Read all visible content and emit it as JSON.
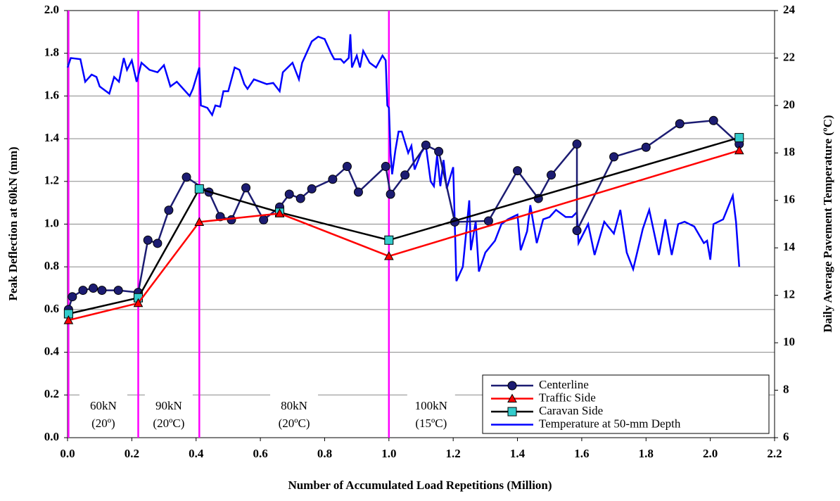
{
  "chart_data": {
    "type": "line",
    "x_label": "Number of Accumulated Load Repetitions (Million)",
    "y_label": "Peak Deflection at 60kN (mm)",
    "y2_label": "Daily Average Pavement Temperature (ºC)",
    "xlim": [
      0,
      2.2
    ],
    "xticks": [
      {
        "value": 0,
        "label": "0.0"
      },
      0.2,
      0.4,
      0.6,
      0.8,
      {
        "value": 1,
        "label": "1.0"
      },
      1.2,
      1.4,
      1.6,
      1.8,
      {
        "value": 2,
        "label": "2.0"
      },
      2.2
    ],
    "ylim": [
      0,
      2
    ],
    "yticks": [
      {
        "value": 0,
        "label": "0.0"
      },
      0.2,
      0.4,
      0.6,
      0.8,
      {
        "value": 1,
        "label": "1.0"
      },
      1.2,
      1.4,
      1.6,
      1.8,
      {
        "value": 2,
        "label": "2.0"
      }
    ],
    "y2lim": [
      6,
      24
    ],
    "y2ticks": [
      6,
      8,
      10,
      12,
      14,
      16,
      18,
      20,
      22,
      24
    ],
    "grid": true,
    "legend": "bottom-right",
    "phase_lines": {
      "color": "#ff00ff",
      "x": [
        0.003,
        0.22,
        0.41,
        1.0
      ]
    },
    "annotations": [
      [
        "60kN",
        "(20º)"
      ],
      [
        "90kN",
        "(20ºC)"
      ],
      [
        "80kN",
        "(20ºC)"
      ],
      [
        "100kN",
        "(15ºC)"
      ]
    ],
    "series": [
      {
        "name": "Centerline",
        "color": "#1c1c72",
        "marker": "circle",
        "x": [
          0.003,
          0.015,
          0.048,
          0.08,
          0.107,
          0.158,
          0.22,
          0.25,
          0.28,
          0.315,
          0.37,
          0.44,
          0.475,
          0.51,
          0.555,
          0.61,
          0.66,
          0.69,
          0.725,
          0.76,
          0.825,
          0.87,
          0.905,
          0.99,
          1.005,
          1.05,
          1.115,
          1.155,
          1.205,
          1.31,
          1.4,
          1.465,
          1.505,
          1.585,
          1.585,
          1.7,
          1.8,
          1.905,
          2.01,
          2.09
        ],
        "values": [
          0.6,
          0.66,
          0.69,
          0.7,
          0.69,
          0.69,
          0.68,
          0.925,
          0.91,
          1.065,
          1.22,
          1.15,
          1.035,
          1.02,
          1.17,
          1.02,
          1.08,
          1.14,
          1.12,
          1.165,
          1.21,
          1.27,
          1.15,
          1.27,
          1.14,
          1.23,
          1.37,
          1.34,
          1.01,
          1.015,
          1.25,
          1.12,
          1.23,
          1.375,
          0.97,
          1.315,
          1.36,
          1.47,
          1.485,
          1.375
        ]
      },
      {
        "name": "Traffic Side",
        "color": "#ff0000",
        "marker": "triangle",
        "x": [
          0.003,
          0.22,
          0.41,
          0.66,
          1.0,
          2.09
        ],
        "values": [
          0.55,
          0.63,
          1.01,
          1.05,
          0.85,
          1.345
        ]
      },
      {
        "name": "Caravan Side",
        "color": "#000000",
        "marker": "square",
        "marker_color": "#33cccc",
        "x": [
          0.003,
          0.22,
          0.41,
          0.66,
          1.0,
          2.09
        ],
        "values": [
          0.58,
          0.655,
          1.165,
          1.055,
          0.925,
          1.405
        ]
      },
      {
        "name": "Temperature at 50-mm Depth",
        "color": "#0000ff",
        "axis": "y2",
        "x": [
          0.0,
          0.01,
          0.04,
          0.055,
          0.075,
          0.09,
          0.1,
          0.13,
          0.145,
          0.16,
          0.175,
          0.185,
          0.2,
          0.215,
          0.23,
          0.255,
          0.28,
          0.3,
          0.32,
          0.34,
          0.38,
          0.39,
          0.41,
          0.415,
          0.435,
          0.45,
          0.46,
          0.475,
          0.485,
          0.5,
          0.52,
          0.535,
          0.55,
          0.56,
          0.58,
          0.62,
          0.64,
          0.66,
          0.67,
          0.7,
          0.72,
          0.73,
          0.76,
          0.78,
          0.8,
          0.82,
          0.83,
          0.85,
          0.86,
          0.875,
          0.88,
          0.885,
          0.9,
          0.91,
          0.92,
          0.94,
          0.96,
          0.98,
          0.99,
          0.995,
          1.0,
          1.005,
          1.01,
          1.02,
          1.03,
          1.04,
          1.06,
          1.07,
          1.08,
          1.1,
          1.115,
          1.13,
          1.14,
          1.15,
          1.16,
          1.17,
          1.18,
          1.2,
          1.21,
          1.23,
          1.25,
          1.255,
          1.27,
          1.28,
          1.3,
          1.33,
          1.35,
          1.37,
          1.4,
          1.41,
          1.43,
          1.44,
          1.46,
          1.48,
          1.5,
          1.52,
          1.55,
          1.57,
          1.585,
          1.59,
          1.62,
          1.64,
          1.67,
          1.7,
          1.72,
          1.74,
          1.76,
          1.79,
          1.81,
          1.84,
          1.86,
          1.88,
          1.9,
          1.92,
          1.95,
          1.98,
          1.99,
          2.0,
          2.01,
          2.04,
          2.07,
          2.08,
          2.09
        ],
        "values": [
          21.6,
          22.0,
          21.95,
          21.0,
          21.3,
          21.2,
          20.8,
          20.5,
          21.2,
          21.0,
          22.0,
          21.5,
          21.9,
          21.0,
          21.8,
          21.5,
          21.4,
          21.7,
          20.8,
          21.0,
          20.4,
          20.7,
          21.6,
          20.0,
          19.9,
          19.6,
          20.0,
          19.95,
          20.6,
          20.6,
          21.6,
          21.5,
          20.9,
          20.7,
          21.1,
          20.9,
          20.95,
          20.6,
          21.4,
          21.8,
          21.1,
          21.8,
          22.7,
          22.9,
          22.8,
          22.2,
          21.95,
          21.95,
          21.8,
          22.0,
          23.0,
          21.6,
          22.1,
          21.6,
          22.3,
          21.8,
          21.6,
          22.1,
          21.9,
          20.0,
          19.9,
          18.0,
          17.1,
          18.1,
          18.9,
          18.9,
          18.0,
          18.3,
          17.3,
          18.0,
          18.3,
          16.8,
          16.6,
          17.9,
          16.6,
          17.7,
          16.5,
          17.4,
          12.6,
          13.2,
          16.0,
          13.9,
          15.1,
          13.0,
          13.8,
          14.3,
          15.0,
          15.2,
          15.4,
          13.9,
          14.7,
          15.8,
          14.2,
          15.2,
          15.3,
          15.6,
          15.3,
          15.3,
          15.5,
          14.2,
          15.0,
          13.7,
          15.1,
          14.6,
          15.6,
          13.8,
          13.1,
          14.8,
          15.6,
          13.7,
          15.2,
          13.7,
          15.0,
          15.1,
          14.9,
          14.2,
          14.3,
          13.5,
          15.0,
          15.2,
          16.2,
          15.1,
          13.2
        ]
      }
    ]
  }
}
